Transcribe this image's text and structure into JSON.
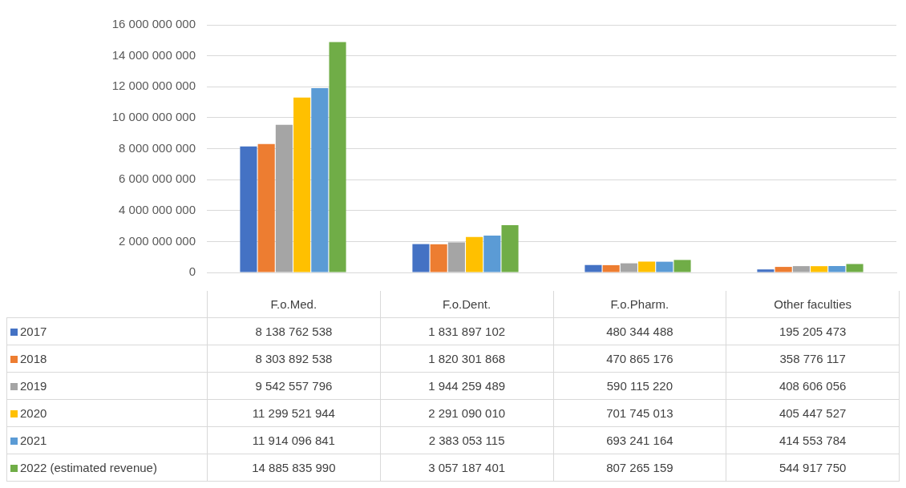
{
  "chart_data": {
    "type": "bar",
    "categories": [
      "F.o.Med.",
      "F.o.Dent.",
      "F.o.Pharm.",
      "Other faculties"
    ],
    "ylim": [
      0,
      16000000000
    ],
    "yticks": [
      0,
      {
        "value": 2000000000,
        "label": "2 000 000 000"
      },
      {
        "value": 4000000000,
        "label": "4 000 000 000"
      },
      {
        "value": 6000000000,
        "label": "6 000 000 000"
      },
      {
        "value": 8000000000,
        "label": "8 000 000 000"
      },
      {
        "value": 10000000000,
        "label": "10 000 000 000"
      },
      {
        "value": 12000000000,
        "label": "12 000 000 000"
      },
      {
        "value": 14000000000,
        "label": "14 000 000 000"
      },
      {
        "value": 16000000000,
        "label": "16 000 000 000"
      }
    ],
    "grid": "y",
    "legend": "bottom",
    "series": [
      {
        "name": "2017",
        "color": "#4472c4",
        "values": [
          8138762538,
          1831897102,
          480344488,
          195205473
        ],
        "value_labels": [
          "8 138 762 538",
          "1 831 897 102",
          "480 344 488",
          "195 205 473"
        ]
      },
      {
        "name": "2018",
        "color": "#ed7d31",
        "values": [
          8303892538,
          1820301868,
          470865176,
          358776117
        ],
        "value_labels": [
          "8 303 892 538",
          "1 820 301 868",
          "470 865 176",
          "358 776 117"
        ]
      },
      {
        "name": "2019",
        "color": "#a5a5a5",
        "values": [
          9542557796,
          1944259489,
          590115220,
          408606056
        ],
        "value_labels": [
          "9 542 557 796",
          "1 944 259 489",
          "590 115 220",
          "408 606 056"
        ]
      },
      {
        "name": "2020",
        "color": "#ffc000",
        "values": [
          11299521944,
          2291090010,
          701745013,
          405447527
        ],
        "value_labels": [
          "11 299 521 944",
          "2 291 090 010",
          "701 745 013",
          "405 447 527"
        ]
      },
      {
        "name": "2021",
        "color": "#5b9bd5",
        "values": [
          11914096841,
          2383053115,
          693241164,
          414553784
        ],
        "value_labels": [
          "11 914 096 841",
          "2 383 053 115",
          "693 241 164",
          "414 553 784"
        ]
      },
      {
        "name": "2022 (estimated revenue)",
        "color": "#70ad47",
        "values": [
          14885835990,
          3057187401,
          807265159,
          544917750
        ],
        "value_labels": [
          "14 885 835 990",
          "3 057 187 401",
          "807 265 159",
          "544 917 750"
        ]
      }
    ]
  }
}
